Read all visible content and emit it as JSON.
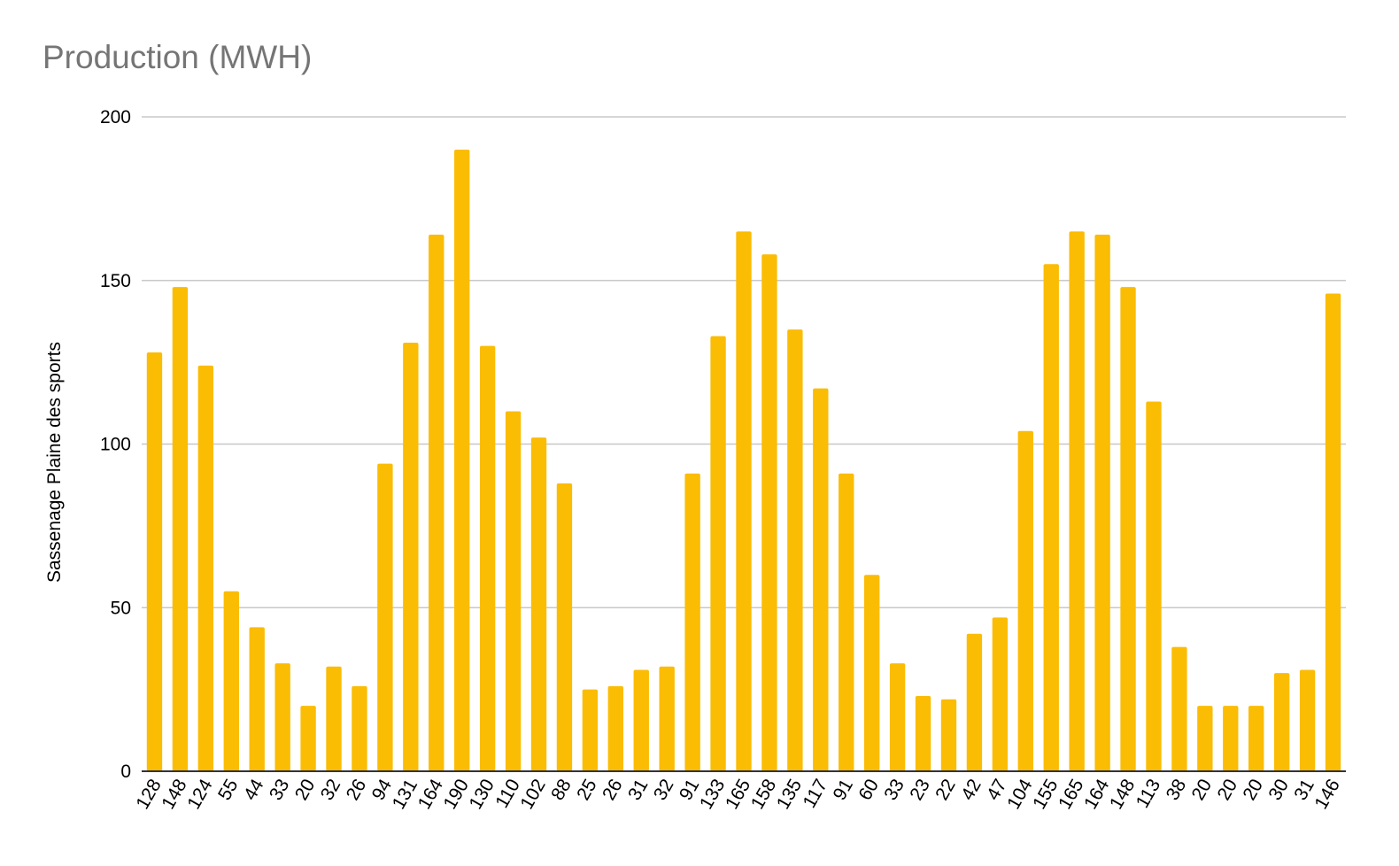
{
  "chart_data": {
    "type": "bar",
    "title": "Production (MWH)",
    "xlabel": "",
    "ylabel": "Sassenage Plaine des sports",
    "ylim": [
      0,
      200
    ],
    "yticks": [
      0,
      50,
      100,
      150,
      200
    ],
    "grid": true,
    "color": "#FBBC04",
    "categories": [
      "128",
      "148",
      "124",
      "55",
      "44",
      "33",
      "20",
      "32",
      "26",
      "94",
      "131",
      "164",
      "190",
      "130",
      "110",
      "102",
      "88",
      "25",
      "26",
      "31",
      "32",
      "91",
      "133",
      "165",
      "158",
      "135",
      "117",
      "91",
      "60",
      "33",
      "23",
      "22",
      "42",
      "47",
      "104",
      "155",
      "165",
      "164",
      "148",
      "113",
      "38",
      "20",
      "20",
      "20",
      "30",
      "31",
      "146"
    ],
    "values": [
      128,
      148,
      124,
      55,
      44,
      33,
      20,
      32,
      26,
      94,
      131,
      164,
      190,
      130,
      110,
      102,
      88,
      25,
      26,
      31,
      32,
      91,
      133,
      165,
      158,
      135,
      117,
      91,
      60,
      33,
      23,
      22,
      42,
      47,
      104,
      155,
      165,
      164,
      148,
      113,
      38,
      20,
      20,
      20,
      30,
      31,
      146
    ]
  }
}
